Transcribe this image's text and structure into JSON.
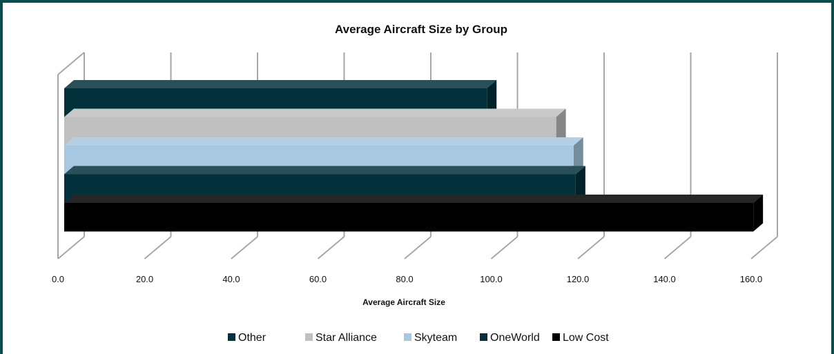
{
  "chart_data": {
    "type": "bar",
    "orientation": "horizontal",
    "style": "3d-clustered",
    "title": "Average Aircraft Size by Group",
    "xlabel": "Average Aircraft Size",
    "ylabel": "",
    "xlim": [
      0,
      160
    ],
    "ticks": [
      "0.0",
      "20.0",
      "40.0",
      "60.0",
      "80.0",
      "100.0",
      "120.0",
      "140.0",
      "160.0"
    ],
    "grid": true,
    "legend_position": "bottom",
    "series": [
      {
        "name": "Other",
        "value": 99.0,
        "color": "#03313b"
      },
      {
        "name": "Star Alliance",
        "value": 115.0,
        "color": "#c0c0c0"
      },
      {
        "name": "Skyteam",
        "value": 119.0,
        "color": "#a7c8e0"
      },
      {
        "name": "OneWorld",
        "value": 119.5,
        "color": "#03313b"
      },
      {
        "name": "Low Cost",
        "value": 160.5,
        "color": "#000000"
      }
    ]
  }
}
